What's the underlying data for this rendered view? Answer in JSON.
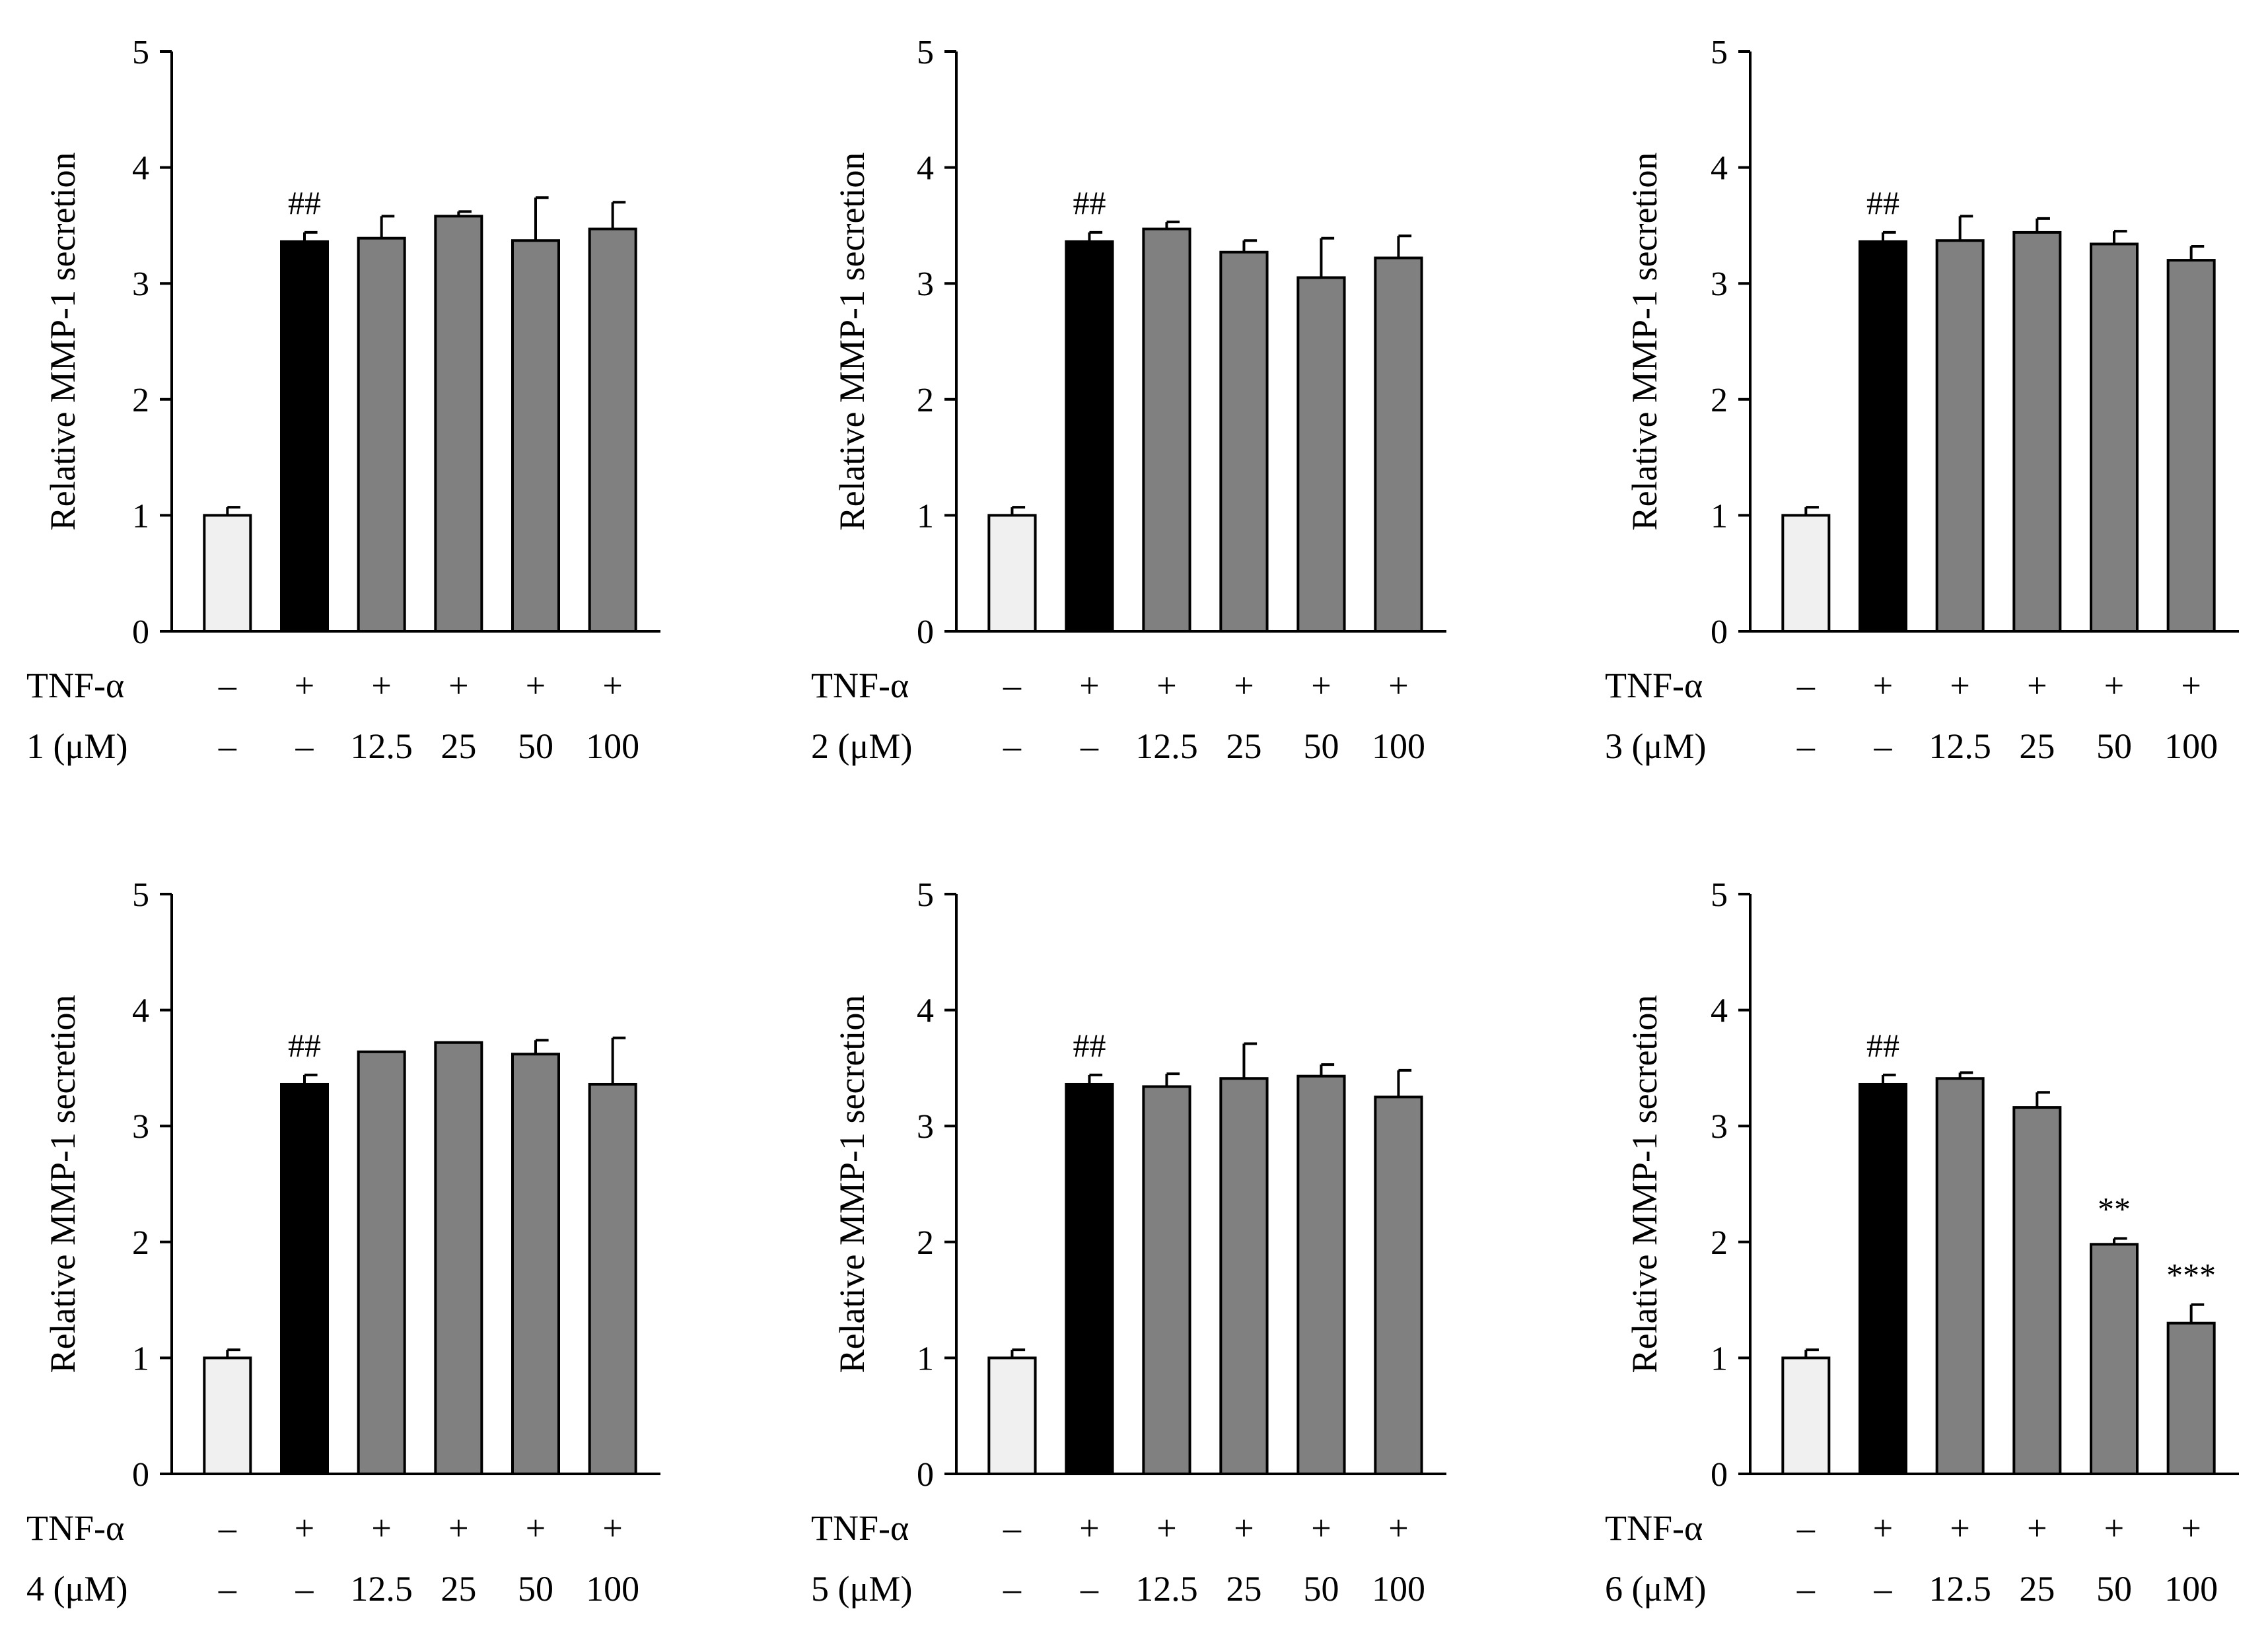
{
  "chart_data": [
    {
      "type": "bar",
      "ylabel": "Relative MMP-1 secretion",
      "ylim": [
        0,
        5
      ],
      "yticks": [
        "0",
        "1",
        "2",
        "3",
        "4",
        "5"
      ],
      "row_labels": [
        "TNF-α",
        "1 (μM)"
      ],
      "tnf_row": [
        "–",
        "+",
        "+",
        "+",
        "+",
        "+"
      ],
      "conc_row": [
        "–",
        "–",
        "12.5",
        "25",
        "50",
        "100"
      ],
      "values": [
        1.0,
        3.36,
        3.39,
        3.58,
        3.37,
        3.47
      ],
      "errors": [
        0.07,
        0.08,
        0.19,
        0.04,
        0.37,
        0.23
      ],
      "annotations": [
        "",
        "##",
        "",
        "",
        "",
        ""
      ],
      "colors": [
        "#f0f0f0",
        "#000000",
        "#808080",
        "#808080",
        "#808080",
        "#808080"
      ]
    },
    {
      "type": "bar",
      "ylabel": "Relative MMP-1 secretion",
      "ylim": [
        0,
        5
      ],
      "yticks": [
        "0",
        "1",
        "2",
        "3",
        "4",
        "5"
      ],
      "row_labels": [
        "TNF-α",
        "2 (μM)"
      ],
      "tnf_row": [
        "–",
        "+",
        "+",
        "+",
        "+",
        "+"
      ],
      "conc_row": [
        "–",
        "–",
        "12.5",
        "25",
        "50",
        "100"
      ],
      "values": [
        1.0,
        3.36,
        3.47,
        3.27,
        3.05,
        3.22
      ],
      "errors": [
        0.07,
        0.08,
        0.06,
        0.1,
        0.34,
        0.19
      ],
      "annotations": [
        "",
        "##",
        "",
        "",
        "",
        ""
      ],
      "colors": [
        "#f0f0f0",
        "#000000",
        "#808080",
        "#808080",
        "#808080",
        "#808080"
      ]
    },
    {
      "type": "bar",
      "ylabel": "Relative MMP-1 secretion",
      "ylim": [
        0,
        5
      ],
      "yticks": [
        "0",
        "1",
        "2",
        "3",
        "4",
        "5"
      ],
      "row_labels": [
        "TNF-α",
        "3 (μM)"
      ],
      "tnf_row": [
        "–",
        "+",
        "+",
        "+",
        "+",
        "+"
      ],
      "conc_row": [
        "–",
        "–",
        "12.5",
        "25",
        "50",
        "100"
      ],
      "values": [
        1.0,
        3.36,
        3.37,
        3.44,
        3.34,
        3.2
      ],
      "errors": [
        0.07,
        0.08,
        0.21,
        0.12,
        0.11,
        0.12
      ],
      "annotations": [
        "",
        "##",
        "",
        "",
        "",
        ""
      ],
      "colors": [
        "#f0f0f0",
        "#000000",
        "#808080",
        "#808080",
        "#808080",
        "#808080"
      ]
    },
    {
      "type": "bar",
      "ylabel": "Relative MMP-1 secretion",
      "ylim": [
        0,
        5
      ],
      "yticks": [
        "0",
        "1",
        "2",
        "3",
        "4",
        "5"
      ],
      "row_labels": [
        "TNF-α",
        "4 (μM)"
      ],
      "tnf_row": [
        "–",
        "+",
        "+",
        "+",
        "+",
        "+"
      ],
      "conc_row": [
        "–",
        "–",
        "12.5",
        "25",
        "50",
        "100"
      ],
      "values": [
        1.0,
        3.36,
        3.64,
        3.72,
        3.62,
        3.36
      ],
      "errors": [
        0.07,
        0.08,
        0.0,
        0.0,
        0.12,
        0.4
      ],
      "annotations": [
        "",
        "##",
        "",
        "",
        "",
        ""
      ],
      "colors": [
        "#f0f0f0",
        "#000000",
        "#808080",
        "#808080",
        "#808080",
        "#808080"
      ]
    },
    {
      "type": "bar",
      "ylabel": "Relative MMP-1 secretion",
      "ylim": [
        0,
        5
      ],
      "yticks": [
        "0",
        "1",
        "2",
        "3",
        "4",
        "5"
      ],
      "row_labels": [
        "TNF-α",
        "5 (μM)"
      ],
      "tnf_row": [
        "–",
        "+",
        "+",
        "+",
        "+",
        "+"
      ],
      "conc_row": [
        "–",
        "–",
        "12.5",
        "25",
        "50",
        "100"
      ],
      "values": [
        1.0,
        3.36,
        3.34,
        3.41,
        3.43,
        3.25
      ],
      "errors": [
        0.07,
        0.08,
        0.11,
        0.3,
        0.1,
        0.23
      ],
      "annotations": [
        "",
        "##",
        "",
        "",
        "",
        ""
      ],
      "colors": [
        "#f0f0f0",
        "#000000",
        "#808080",
        "#808080",
        "#808080",
        "#808080"
      ]
    },
    {
      "type": "bar",
      "ylabel": "Relative MMP-1 secretion",
      "ylim": [
        0,
        5
      ],
      "yticks": [
        "0",
        "1",
        "2",
        "3",
        "4",
        "5"
      ],
      "row_labels": [
        "TNF-α",
        "6 (μM)"
      ],
      "tnf_row": [
        "–",
        "+",
        "+",
        "+",
        "+",
        "+"
      ],
      "conc_row": [
        "–",
        "–",
        "12.5",
        "25",
        "50",
        "100"
      ],
      "values": [
        1.0,
        3.36,
        3.41,
        3.16,
        1.98,
        1.3
      ],
      "errors": [
        0.07,
        0.08,
        0.05,
        0.13,
        0.05,
        0.16
      ],
      "annotations": [
        "",
        "##",
        "",
        "",
        "**",
        "***"
      ],
      "colors": [
        "#f0f0f0",
        "#000000",
        "#808080",
        "#808080",
        "#808080",
        "#808080"
      ]
    }
  ]
}
